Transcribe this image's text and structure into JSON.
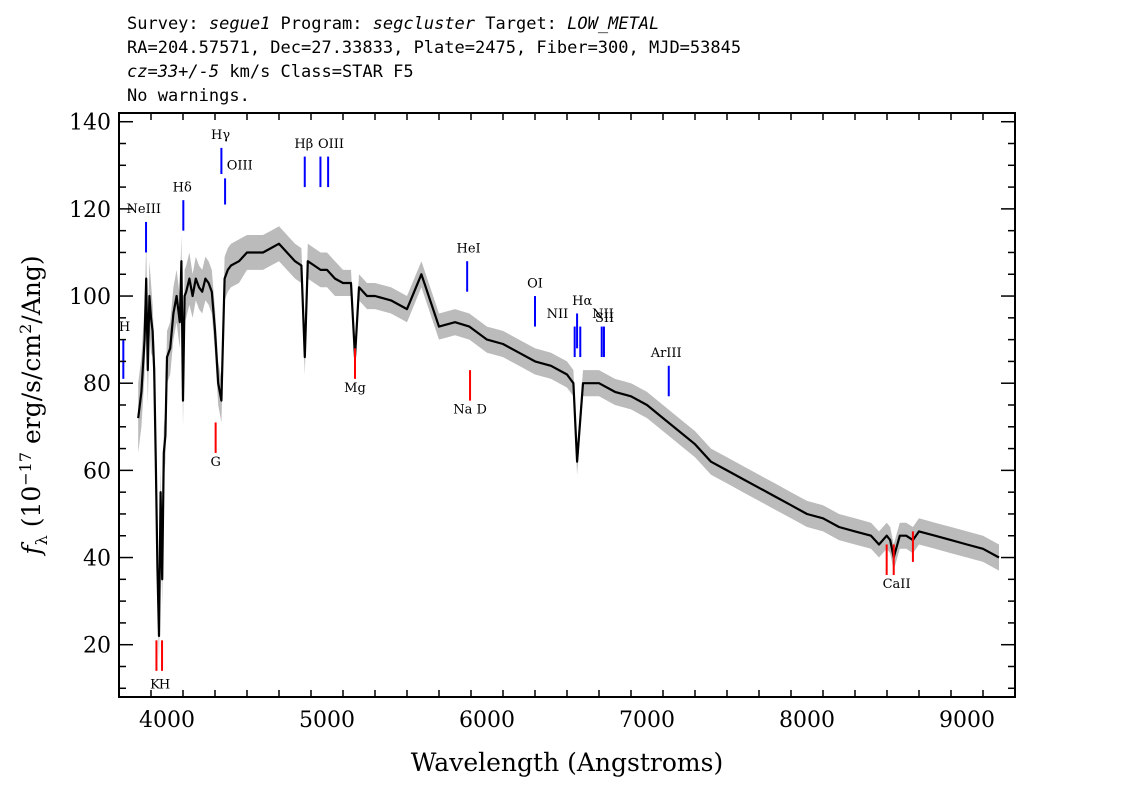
{
  "header": {
    "line1": [
      {
        "text": "Survey: ",
        "italic": false
      },
      {
        "text": "segue1",
        "italic": true
      },
      {
        "text": " Program: ",
        "italic": false
      },
      {
        "text": "segcluster",
        "italic": true
      },
      {
        "text": " Target: ",
        "italic": false
      },
      {
        "text": "LOW_METAL",
        "italic": true
      }
    ],
    "line2": "RA=204.57571, Dec=27.33833, Plate=2475, Fiber=300, MJD=53845",
    "line3": [
      {
        "text": "cz=33+/-5",
        "italic": true
      },
      {
        "text": " km/s Class=STAR F5",
        "italic": false
      }
    ],
    "line4": "No warnings."
  },
  "chart_data": {
    "type": "line",
    "xlabel": "Wavelength (Angstroms)",
    "ylabel": "f_λ (10^-17 erg/s/cm^2/Ang)",
    "xlim": [
      3700,
      9300
    ],
    "ylim": [
      8,
      142
    ],
    "xticks": [
      4000,
      5000,
      6000,
      7000,
      8000,
      9000
    ],
    "yticks": [
      20,
      40,
      60,
      80,
      100,
      120,
      140
    ],
    "colors": {
      "flux": "#000000",
      "error_band": "#bbbbbb",
      "emission": "#0000ff",
      "absorption": "#ff0000"
    },
    "series": [
      {
        "x": [
          3820,
          3840,
          3860,
          3870,
          3880,
          3890,
          3900,
          3910,
          3920,
          3930,
          3940,
          3950,
          3960,
          3970,
          3980,
          3990,
          4000,
          4020,
          4040,
          4060,
          4080,
          4090,
          4100,
          4110,
          4120,
          4140,
          4160,
          4180,
          4200,
          4220,
          4240,
          4260,
          4280,
          4300,
          4320,
          4340,
          4360,
          4380,
          4400,
          4450,
          4500,
          4550,
          4600,
          4650,
          4700,
          4750,
          4800,
          4840,
          4861,
          4880,
          4920,
          4960,
          5000,
          5050,
          5100,
          5150,
          5175,
          5200,
          5250,
          5300,
          5400,
          5500,
          5590,
          5700,
          5800,
          5890,
          6000,
          6100,
          6200,
          6300,
          6400,
          6500,
          6540,
          6563,
          6600,
          6700,
          6800,
          6900,
          7000,
          7100,
          7200,
          7300,
          7400,
          7500,
          7600,
          7700,
          7800,
          7900,
          8000,
          8100,
          8200,
          8300,
          8400,
          8450,
          8498,
          8520,
          8542,
          8580,
          8620,
          8662,
          8700,
          8800,
          8900,
          9000,
          9100,
          9200
        ],
        "y": [
          72,
          78,
          90,
          104,
          83,
          100,
          95,
          92,
          83,
          62,
          38,
          22,
          55,
          35,
          64,
          68,
          86,
          88,
          96,
          100,
          94,
          108,
          76,
          100,
          101,
          104,
          100,
          104,
          102,
          101,
          104,
          103,
          101,
          92,
          80,
          76,
          104,
          106,
          107,
          108,
          110,
          110,
          110,
          111,
          112,
          110,
          108,
          107,
          86,
          108,
          107,
          106,
          106,
          104,
          103,
          103,
          86,
          102,
          100,
          100,
          99,
          97,
          105,
          93,
          94,
          93,
          90,
          89,
          87,
          85,
          84,
          82,
          80,
          62,
          80,
          80,
          78,
          77,
          75,
          72,
          69,
          66,
          62,
          60,
          58,
          56,
          54,
          52,
          50,
          49,
          47,
          46,
          45,
          43,
          45,
          44,
          40,
          45,
          45,
          44,
          46,
          45,
          44,
          43,
          42,
          40
        ],
        "err": [
          8,
          8,
          8,
          8,
          8,
          8,
          8,
          6,
          6,
          6,
          6,
          6,
          6,
          6,
          6,
          6,
          6,
          6,
          6,
          6,
          6,
          6,
          6,
          6,
          6,
          6,
          5,
          5,
          5,
          5,
          5,
          5,
          5,
          5,
          5,
          5,
          5,
          5,
          5,
          5,
          4,
          4,
          4,
          4,
          4,
          4,
          4,
          4,
          4,
          4,
          4,
          4,
          4,
          4,
          3,
          3,
          3,
          3,
          3,
          3,
          3,
          3,
          3,
          3,
          3,
          3,
          3,
          3,
          3,
          3,
          3,
          3,
          3,
          3,
          3,
          3,
          3,
          3,
          3,
          3,
          3,
          3,
          3,
          3,
          3,
          3,
          3,
          3,
          3,
          3,
          3,
          3,
          3,
          3,
          3,
          3,
          3,
          3,
          3,
          3,
          3,
          3,
          3,
          3,
          3,
          3
        ]
      }
    ],
    "emission_lines": [
      {
        "label": "H",
        "wavelength": 3727,
        "y1": 81,
        "y2": 90
      },
      {
        "label": "NeIII",
        "wavelength": 3869,
        "y1": 110,
        "y2": 117
      },
      {
        "label": "Hδ",
        "wavelength": 4102,
        "y1": 115,
        "y2": 122
      },
      {
        "label": "Hγ",
        "wavelength": 4340,
        "y1": 128,
        "y2": 134
      },
      {
        "label": "OIII",
        "wavelength": 4363,
        "y1": 121,
        "y2": 127
      },
      {
        "label": "Hβ",
        "wavelength": 4861,
        "y1": 125,
        "y2": 132
      },
      {
        "label": "OIII",
        "wavelength": 4959,
        "y1": 125,
        "y2": 132
      },
      {
        "label": "OIII",
        "wavelength": 5007,
        "y1": 125,
        "y2": 132
      },
      {
        "label": "HeI",
        "wavelength": 5876,
        "y1": 101,
        "y2": 108
      },
      {
        "label": "OI",
        "wavelength": 6300,
        "y1": 93,
        "y2": 100
      },
      {
        "label": "NII",
        "wavelength": 6548,
        "y1": 86,
        "y2": 93
      },
      {
        "label": "Hα",
        "wavelength": 6563,
        "y1": 88,
        "y2": 96
      },
      {
        "label": "NII",
        "wavelength": 6583,
        "y1": 86,
        "y2": 93
      },
      {
        "label": "SII",
        "wavelength": 6717,
        "y1": 86,
        "y2": 93
      },
      {
        "label": "SII",
        "wavelength": 6731,
        "y1": 86,
        "y2": 93
      },
      {
        "label": "ArIII",
        "wavelength": 7136,
        "y1": 77,
        "y2": 84
      }
    ],
    "emission_labels": [
      {
        "text": "H",
        "wavelength": 3735,
        "y": 92
      },
      {
        "text": "NeIII",
        "wavelength": 3855,
        "y": 119
      },
      {
        "text": "Hδ",
        "wavelength": 4095,
        "y": 124
      },
      {
        "text": "Hγ",
        "wavelength": 4335,
        "y": 136
      },
      {
        "text": "OIII",
        "wavelength": 4455,
        "y": 129
      },
      {
        "text": "Hβ",
        "wavelength": 4855,
        "y": 134
      },
      {
        "text": "OIII",
        "wavelength": 5025,
        "y": 134
      },
      {
        "text": "HeI",
        "wavelength": 5885,
        "y": 110
      },
      {
        "text": "OI",
        "wavelength": 6300,
        "y": 102
      },
      {
        "text": "NII",
        "wavelength": 6440,
        "y": 95
      },
      {
        "text": "Hα",
        "wavelength": 6595,
        "y": 98
      },
      {
        "text": "NII",
        "wavelength": 6725,
        "y": 95
      },
      {
        "text": "SII",
        "wavelength": 6735,
        "y": 94
      },
      {
        "text": "ArIII",
        "wavelength": 7120,
        "y": 86
      }
    ],
    "absorption_lines": [
      {
        "label": "K",
        "wavelength": 3934,
        "y1": 14,
        "y2": 21
      },
      {
        "label": "H",
        "wavelength": 3969,
        "y1": 14,
        "y2": 21
      },
      {
        "label": "G",
        "wavelength": 4304,
        "y1": 64,
        "y2": 71
      },
      {
        "label": "Mg",
        "wavelength": 5175,
        "y1": 81,
        "y2": 88
      },
      {
        "label": "Na D",
        "wavelength": 5894,
        "y1": 76,
        "y2": 83
      },
      {
        "label": "CaII",
        "wavelength": 8498,
        "y1": 36,
        "y2": 43
      },
      {
        "label": "CaII",
        "wavelength": 8542,
        "y1": 36,
        "y2": 43
      },
      {
        "label": "CaII",
        "wavelength": 8662,
        "y1": 39,
        "y2": 46
      }
    ],
    "absorption_labels": [
      {
        "text": "K",
        "wavelength": 3925,
        "y": 10
      },
      {
        "text": "H",
        "wavelength": 3985,
        "y": 10
      },
      {
        "text": "G",
        "wavelength": 4304,
        "y": 61
      },
      {
        "text": "Mg",
        "wavelength": 5175,
        "y": 78
      },
      {
        "text": "Na D",
        "wavelength": 5894,
        "y": 73
      },
      {
        "text": "CaII",
        "wavelength": 8560,
        "y": 33
      }
    ]
  }
}
